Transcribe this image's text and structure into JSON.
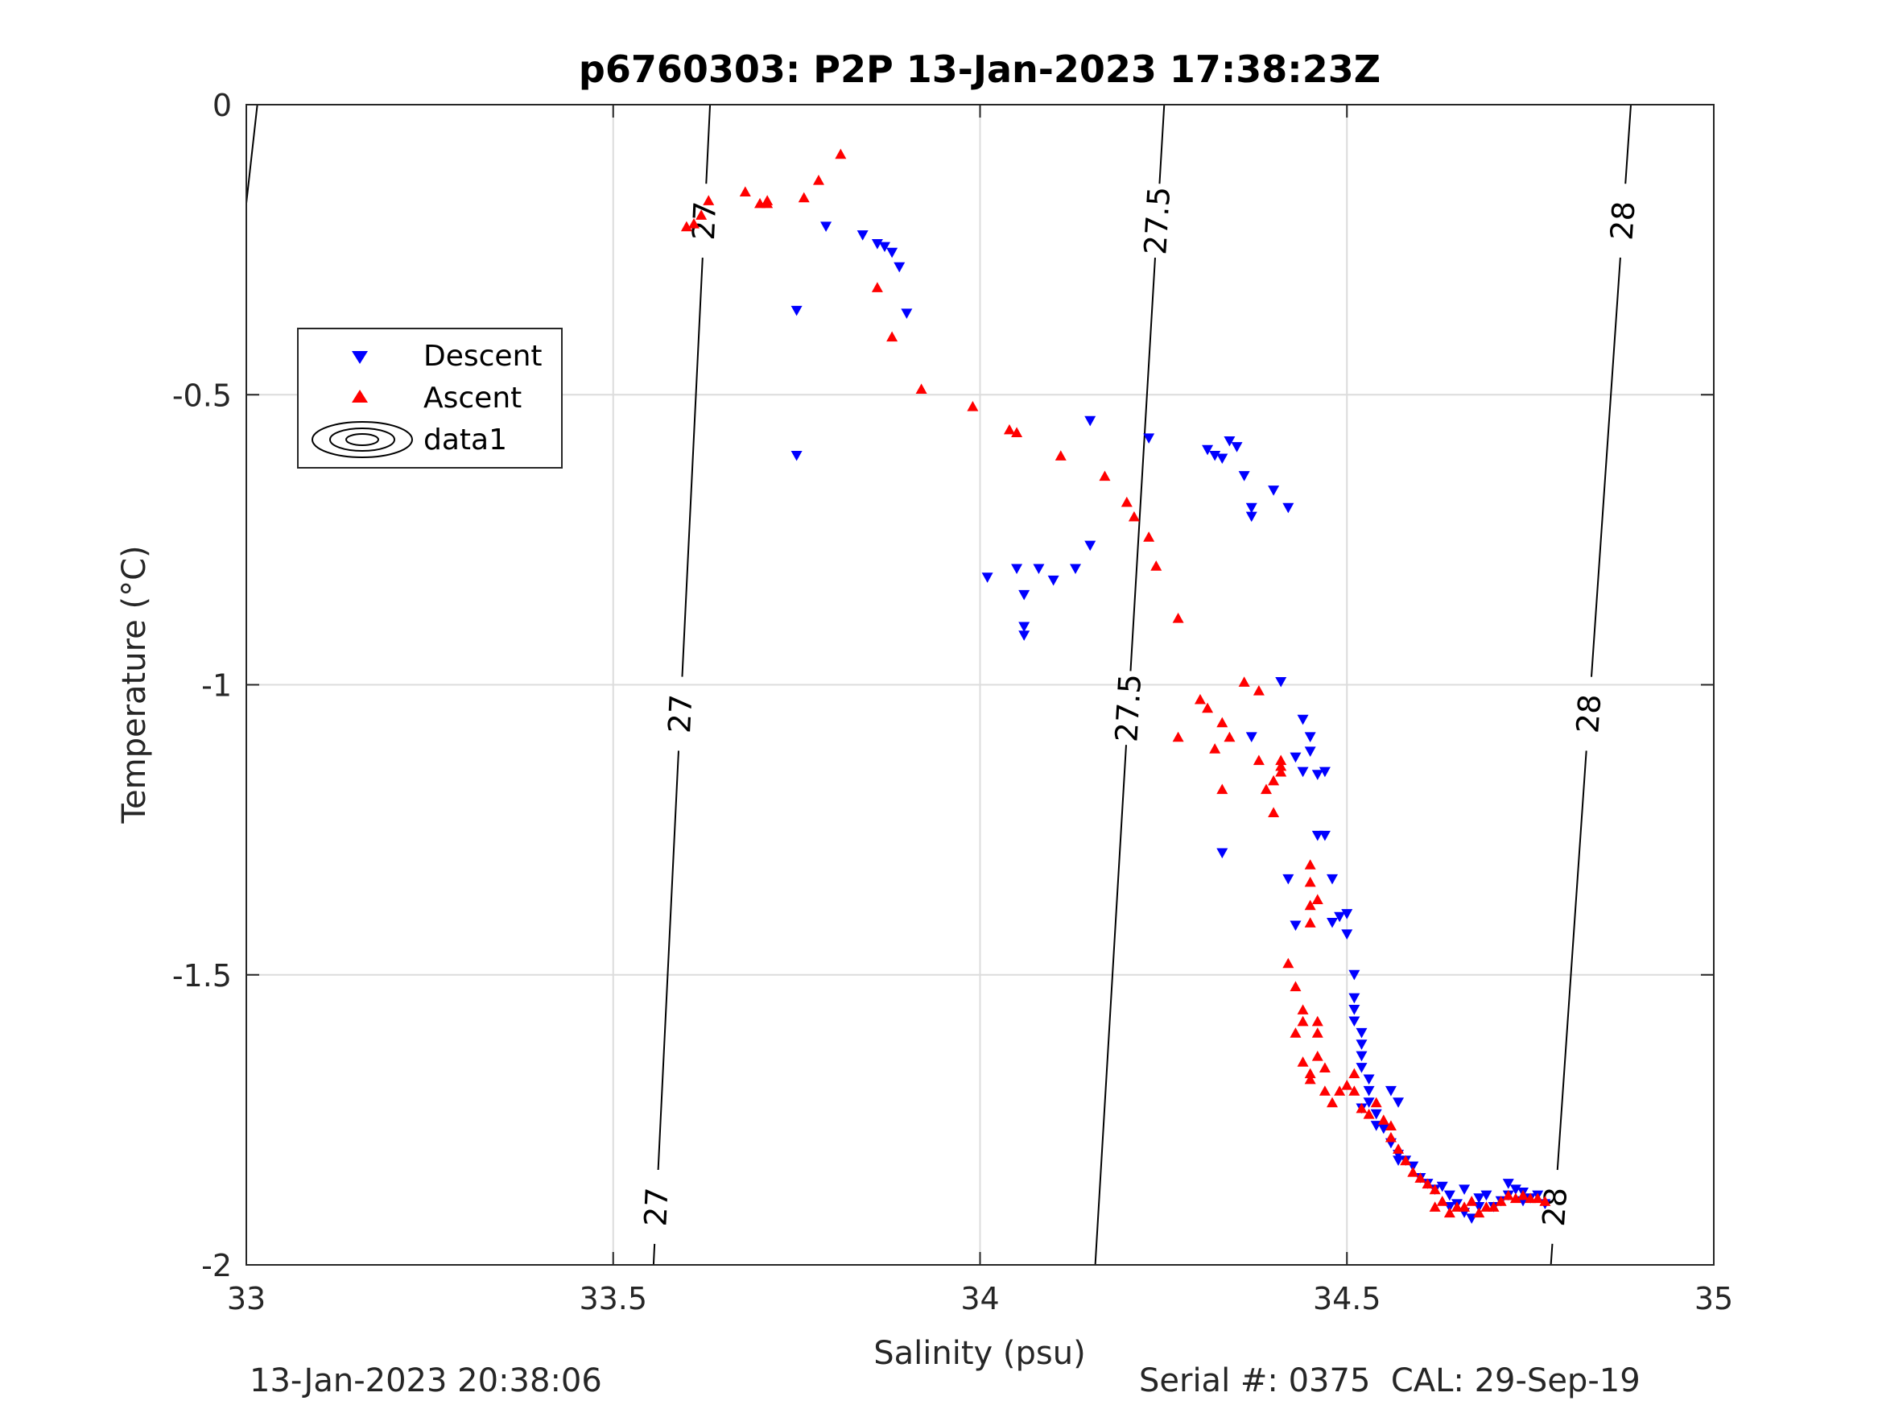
{
  "chart_data": {
    "type": "scatter",
    "title": "p6760303: P2P 13-Jan-2023 17:38:23Z",
    "xlabel": "Salinity (psu)",
    "ylabel": "Temperature (°C)",
    "xlim": [
      33,
      35
    ],
    "ylim": [
      -2,
      0
    ],
    "xticks": [
      33,
      33.5,
      34,
      34.5,
      35
    ],
    "xtick_labels": [
      "33",
      "33.5",
      "34",
      "34.5",
      "35"
    ],
    "yticks": [
      0,
      -0.5,
      -1,
      -1.5,
      -2
    ],
    "ytick_labels": [
      "0",
      "-0.5",
      "-1",
      "-1.5",
      "-2"
    ],
    "grid": true,
    "legend_position": "upper-left",
    "legend": [
      "Descent",
      "Ascent",
      "data1"
    ],
    "colors": {
      "descent": "#0000ff",
      "ascent": "#ff0000",
      "contour": "#000000",
      "grid": "#dcdcdc",
      "axis": "#262626"
    },
    "series": [
      {
        "name": "Descent",
        "marker": "triangle-down",
        "points": [
          [
            33.75,
            -0.355
          ],
          [
            33.75,
            -0.605
          ],
          [
            33.79,
            -0.21
          ],
          [
            33.84,
            -0.225
          ],
          [
            33.86,
            -0.24
          ],
          [
            33.87,
            -0.245
          ],
          [
            33.88,
            -0.255
          ],
          [
            33.89,
            -0.28
          ],
          [
            33.9,
            -0.36
          ],
          [
            34.01,
            -0.815
          ],
          [
            34.05,
            -0.8
          ],
          [
            34.06,
            -0.845
          ],
          [
            34.06,
            -0.9
          ],
          [
            34.06,
            -0.915
          ],
          [
            34.08,
            -0.8
          ],
          [
            34.1,
            -0.82
          ],
          [
            34.13,
            -0.8
          ],
          [
            34.15,
            -0.545
          ],
          [
            34.15,
            -0.76
          ],
          [
            34.23,
            -0.575
          ],
          [
            34.31,
            -0.595
          ],
          [
            34.32,
            -0.605
          ],
          [
            34.33,
            -0.61
          ],
          [
            34.34,
            -0.58
          ],
          [
            34.35,
            -0.59
          ],
          [
            34.36,
            -0.64
          ],
          [
            34.37,
            -0.695
          ],
          [
            34.37,
            -0.71
          ],
          [
            34.4,
            -0.665
          ],
          [
            34.42,
            -0.695
          ],
          [
            34.33,
            -1.29
          ],
          [
            34.37,
            -1.09
          ],
          [
            34.41,
            -0.995
          ],
          [
            34.43,
            -1.125
          ],
          [
            34.44,
            -1.06
          ],
          [
            34.44,
            -1.15
          ],
          [
            34.45,
            -1.09
          ],
          [
            34.45,
            -1.115
          ],
          [
            34.46,
            -1.155
          ],
          [
            34.47,
            -1.15
          ],
          [
            34.43,
            -1.415
          ],
          [
            34.42,
            -1.335
          ],
          [
            34.46,
            -1.26
          ],
          [
            34.47,
            -1.26
          ],
          [
            34.48,
            -1.335
          ],
          [
            34.48,
            -1.41
          ],
          [
            34.49,
            -1.4
          ],
          [
            34.5,
            -1.395
          ],
          [
            34.5,
            -1.43
          ],
          [
            34.51,
            -1.5
          ],
          [
            34.51,
            -1.54
          ],
          [
            34.51,
            -1.56
          ],
          [
            34.51,
            -1.58
          ],
          [
            34.52,
            -1.6
          ],
          [
            34.52,
            -1.62
          ],
          [
            34.52,
            -1.64
          ],
          [
            34.52,
            -1.66
          ],
          [
            34.53,
            -1.68
          ],
          [
            34.53,
            -1.7
          ],
          [
            34.53,
            -1.72
          ],
          [
            34.52,
            -1.73
          ],
          [
            34.54,
            -1.74
          ],
          [
            34.54,
            -1.76
          ],
          [
            34.55,
            -1.765
          ],
          [
            34.56,
            -1.7
          ],
          [
            34.57,
            -1.72
          ],
          [
            34.56,
            -1.79
          ],
          [
            34.57,
            -1.81
          ],
          [
            34.57,
            -1.82
          ],
          [
            34.58,
            -1.82
          ],
          [
            34.59,
            -1.83
          ],
          [
            34.6,
            -1.85
          ],
          [
            34.61,
            -1.86
          ],
          [
            34.62,
            -1.87
          ],
          [
            34.63,
            -1.865
          ],
          [
            34.64,
            -1.9
          ],
          [
            34.64,
            -1.88
          ],
          [
            34.65,
            -1.895
          ],
          [
            34.66,
            -1.91
          ],
          [
            34.67,
            -1.92
          ],
          [
            34.68,
            -1.9
          ],
          [
            34.69,
            -1.88
          ],
          [
            34.7,
            -1.9
          ],
          [
            34.71,
            -1.89
          ],
          [
            34.72,
            -1.86
          ],
          [
            34.72,
            -1.88
          ],
          [
            34.73,
            -1.87
          ],
          [
            34.74,
            -1.89
          ],
          [
            34.75,
            -1.885
          ],
          [
            34.76,
            -1.88
          ],
          [
            34.77,
            -1.895
          ],
          [
            34.66,
            -1.87
          ],
          [
            34.68,
            -1.885
          ],
          [
            34.74,
            -1.875
          ]
        ]
      },
      {
        "name": "Ascent",
        "marker": "triangle-up",
        "points": [
          [
            33.6,
            -0.21
          ],
          [
            33.61,
            -0.205
          ],
          [
            33.62,
            -0.19
          ],
          [
            33.63,
            -0.165
          ],
          [
            33.68,
            -0.15
          ],
          [
            33.7,
            -0.17
          ],
          [
            33.71,
            -0.165
          ],
          [
            33.71,
            -0.17
          ],
          [
            33.76,
            -0.16
          ],
          [
            33.78,
            -0.13
          ],
          [
            33.81,
            -0.085
          ],
          [
            33.86,
            -0.315
          ],
          [
            33.88,
            -0.4
          ],
          [
            33.92,
            -0.49
          ],
          [
            33.99,
            -0.52
          ],
          [
            34.04,
            -0.56
          ],
          [
            34.05,
            -0.565
          ],
          [
            34.11,
            -0.605
          ],
          [
            34.17,
            -0.64
          ],
          [
            34.2,
            -0.685
          ],
          [
            34.21,
            -0.71
          ],
          [
            34.23,
            -0.745
          ],
          [
            34.24,
            -0.795
          ],
          [
            34.27,
            -0.885
          ],
          [
            34.27,
            -1.09
          ],
          [
            34.3,
            -1.025
          ],
          [
            34.31,
            -1.04
          ],
          [
            34.32,
            -1.11
          ],
          [
            34.33,
            -1.065
          ],
          [
            34.33,
            -1.18
          ],
          [
            34.34,
            -1.09
          ],
          [
            34.36,
            -0.995
          ],
          [
            34.38,
            -1.01
          ],
          [
            34.38,
            -1.13
          ],
          [
            34.39,
            -1.18
          ],
          [
            34.4,
            -1.165
          ],
          [
            34.4,
            -1.22
          ],
          [
            34.41,
            -1.14
          ],
          [
            34.41,
            -1.13
          ],
          [
            34.41,
            -1.15
          ],
          [
            34.42,
            -1.48
          ],
          [
            34.43,
            -1.52
          ],
          [
            34.43,
            -1.6
          ],
          [
            34.44,
            -1.56
          ],
          [
            34.44,
            -1.58
          ],
          [
            34.44,
            -1.65
          ],
          [
            34.45,
            -1.67
          ],
          [
            34.45,
            -1.68
          ],
          [
            34.46,
            -1.64
          ],
          [
            34.46,
            -1.6
          ],
          [
            34.46,
            -1.58
          ],
          [
            34.45,
            -1.31
          ],
          [
            34.45,
            -1.34
          ],
          [
            34.45,
            -1.38
          ],
          [
            34.45,
            -1.41
          ],
          [
            34.46,
            -1.37
          ],
          [
            34.47,
            -1.66
          ],
          [
            34.47,
            -1.7
          ],
          [
            34.48,
            -1.72
          ],
          [
            34.49,
            -1.7
          ],
          [
            34.5,
            -1.69
          ],
          [
            34.51,
            -1.67
          ],
          [
            34.51,
            -1.7
          ],
          [
            34.52,
            -1.73
          ],
          [
            34.53,
            -1.74
          ],
          [
            34.54,
            -1.72
          ],
          [
            34.55,
            -1.75
          ],
          [
            34.56,
            -1.76
          ],
          [
            34.56,
            -1.78
          ],
          [
            34.57,
            -1.8
          ],
          [
            34.58,
            -1.82
          ],
          [
            34.59,
            -1.84
          ],
          [
            34.6,
            -1.85
          ],
          [
            34.61,
            -1.86
          ],
          [
            34.62,
            -1.87
          ],
          [
            34.62,
            -1.9
          ],
          [
            34.63,
            -1.89
          ],
          [
            34.64,
            -1.91
          ],
          [
            34.65,
            -1.9
          ],
          [
            34.66,
            -1.9
          ],
          [
            34.67,
            -1.89
          ],
          [
            34.68,
            -1.91
          ],
          [
            34.69,
            -1.9
          ],
          [
            34.7,
            -1.9
          ],
          [
            34.71,
            -1.89
          ],
          [
            34.72,
            -1.88
          ],
          [
            34.73,
            -1.885
          ],
          [
            34.74,
            -1.88
          ],
          [
            34.75,
            -1.885
          ],
          [
            34.76,
            -1.885
          ],
          [
            34.77,
            -1.89
          ]
        ]
      }
    ],
    "contours": [
      {
        "label": "27",
        "line": [
          [
            33.555,
            -2
          ],
          [
            33.632,
            0
          ]
        ],
        "labels_at": [
          -1.9,
          -1.05,
          -0.2
        ]
      },
      {
        "label": "27.5",
        "line": [
          [
            34.157,
            -2
          ],
          [
            34.251,
            0
          ]
        ],
        "labels_at": [
          -1.04,
          -0.2
        ]
      },
      {
        "label": "28",
        "line": [
          [
            34.778,
            -2
          ],
          [
            34.887,
            0
          ]
        ],
        "labels_at": [
          -1.9,
          -1.05,
          -0.2
        ]
      },
      {
        "label": "",
        "line": [
          [
            33.0,
            -0.17
          ],
          [
            33.015,
            0
          ]
        ],
        "labels_at": []
      }
    ]
  },
  "footer": {
    "timestamp": "13-Jan-2023 20:38:06",
    "serial_cal": "Serial #: 0375  CAL: 29-Sep-19"
  }
}
